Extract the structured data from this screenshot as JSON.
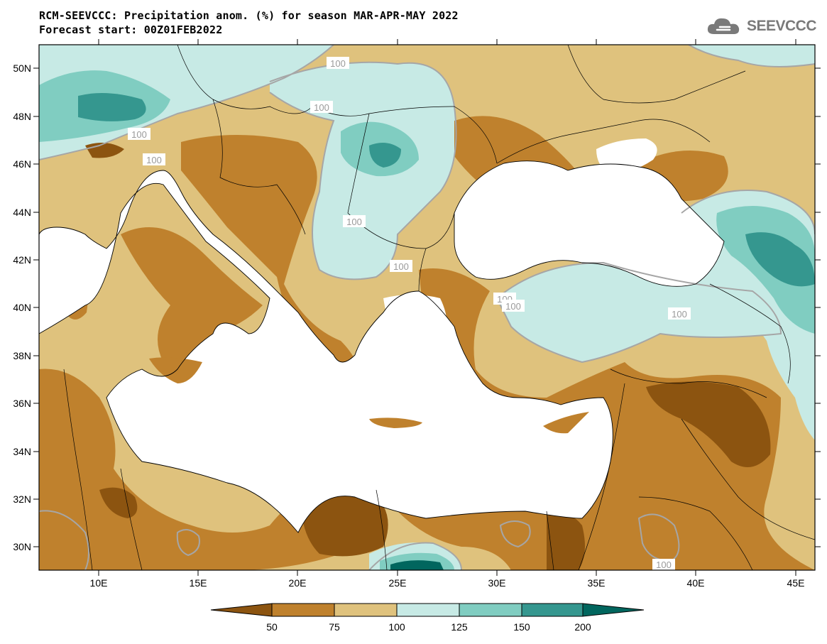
{
  "header": {
    "title_line1": "RCM-SEEVCCC: Precipitation anom. (%) for season MAR-APR-MAY 2022",
    "title_line2": "Forecast start: 00Z01FEB2022",
    "logo_text": "SEEVCCC",
    "logo_icon": "cloud-icon"
  },
  "map": {
    "lat_ticks": [
      "50N",
      "48N",
      "46N",
      "44N",
      "42N",
      "40N",
      "38N",
      "36N",
      "34N",
      "32N",
      "30N"
    ],
    "lon_ticks": [
      "10E",
      "15E",
      "20E",
      "25E",
      "30E",
      "35E",
      "40E",
      "45E"
    ],
    "contour_labels": [
      "100",
      "100",
      "100",
      "100",
      "100",
      "100",
      "100",
      "100",
      "100",
      "100"
    ],
    "colors": {
      "below_50": "#8c5410",
      "50_75": "#bf812d",
      "75_100": "#dfc27d",
      "100_125": "#c7eae5",
      "125_150": "#80cdc1",
      "150_200": "#35978f",
      "above_200": "#01665e",
      "sea": "#ffffff",
      "contour_100": "#a6a6a6"
    }
  },
  "colorbar": {
    "labels": [
      "50",
      "75",
      "100",
      "125",
      "150",
      "200"
    ],
    "colors": [
      "#8c5410",
      "#bf812d",
      "#dfc27d",
      "#c7eae5",
      "#80cdc1",
      "#35978f",
      "#01665e"
    ]
  }
}
